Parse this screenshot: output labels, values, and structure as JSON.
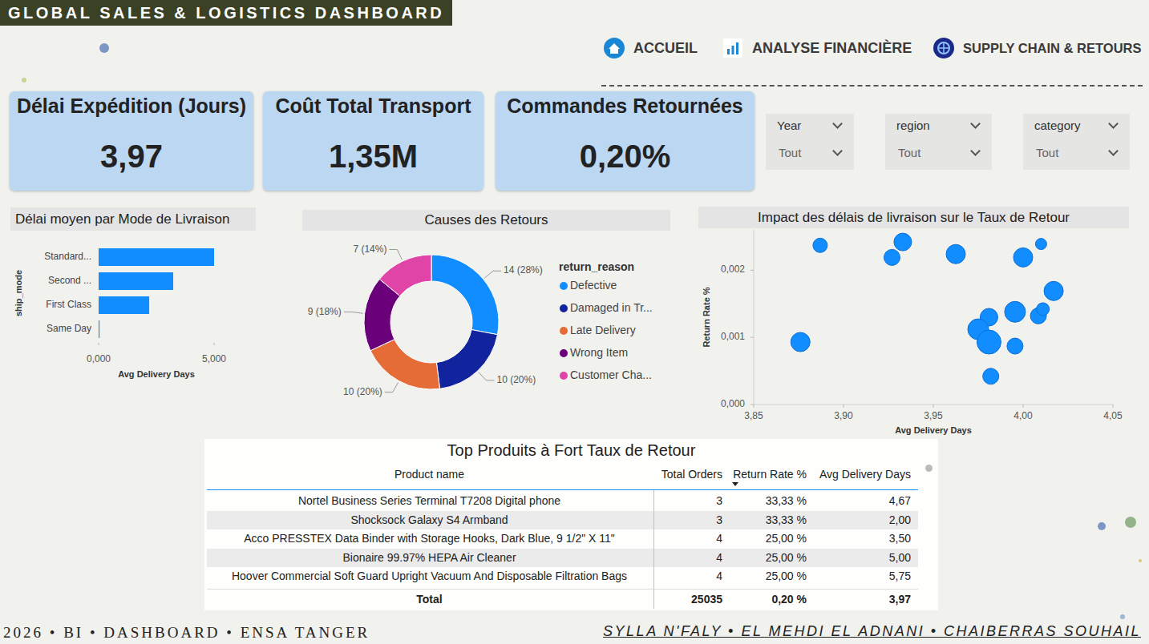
{
  "header": {
    "title": "GLOBAL SALES & LOGISTICS DASHBOARD"
  },
  "nav": [
    {
      "label": "ACCUEIL"
    },
    {
      "label": "ANALYSE FINANCIÈRE"
    },
    {
      "label": "SUPPLY CHAIN & RETOURS"
    }
  ],
  "kpis": [
    {
      "label": "Délai Expédition (Jours)",
      "value": "3,97"
    },
    {
      "label": "Coût Total Transport",
      "value": "1,35M"
    },
    {
      "label": "Commandes Retournées",
      "value": "0,20%"
    }
  ],
  "filters": [
    {
      "label": "Year",
      "value": "Tout"
    },
    {
      "label": "region",
      "value": "Tout"
    },
    {
      "label": "category",
      "value": "Tout"
    }
  ],
  "chart_data": [
    {
      "type": "bar",
      "orientation": "horizontal",
      "title": "Délai moyen par Mode de Livraison",
      "x_label": "Avg Delivery Days",
      "y_label": "ship_mode",
      "categories": [
        "Standard...",
        "Second ...",
        "First Class",
        "Same Day"
      ],
      "values": [
        5.0,
        3.23,
        2.19,
        0.04
      ],
      "color": "#118dff",
      "xlim": [
        0,
        5
      ],
      "xticks": [
        {
          "value": 0,
          "label": "0,000"
        },
        {
          "value": 5,
          "label": "5,000"
        }
      ],
      "grid": false
    },
    {
      "type": "donut",
      "title": "Causes des Retours",
      "legend_title": "return_reason",
      "categories": [
        "Defective",
        "Damaged in Tr...",
        "Late Delivery",
        "Wrong Item",
        "Customer Cha..."
      ],
      "values": [
        14,
        10,
        10,
        9,
        7
      ],
      "value_labels": [
        "14 (28%)",
        "10 (20%)",
        "10 (20%)",
        "9 (18%)",
        "7 (14%)"
      ],
      "colors": [
        "#118dff",
        "#12239e",
        "#e66c37",
        "#6b007b",
        "#e044a7"
      ],
      "legend": "right",
      "data_labels": true
    },
    {
      "type": "scatter",
      "title": "Impact des délais de livraison sur le Taux de Retour",
      "x_label": "Avg Delivery Days",
      "y_label": "Return Rate %",
      "x": [
        3.887,
        3.933,
        3.927,
        3.9625,
        4.0,
        4.01,
        4.017,
        3.876,
        3.981,
        3.975,
        3.981,
        3.9955,
        4.0085,
        4.011,
        3.9955,
        3.982
      ],
      "values": [
        0.00237,
        0.00242,
        0.00219,
        0.00224,
        0.00219,
        0.00239,
        0.00169,
        0.00093,
        0.0013,
        0.00112,
        0.00093,
        0.00138,
        0.00132,
        0.00142,
        0.00087,
        0.00042
      ],
      "sizes": [
        81,
        121,
        100,
        144,
        144,
        49,
        144,
        144,
        121,
        169,
        225,
        169,
        100,
        64,
        100,
        100
      ],
      "color": "#118dff",
      "xlim": [
        3.85,
        4.05
      ],
      "ylim": [
        0,
        0.0026
      ],
      "xticks": [
        {
          "value": 3.85,
          "label": "3,85"
        },
        {
          "value": 3.9,
          "label": "3,90"
        },
        {
          "value": 3.95,
          "label": "3,95"
        },
        {
          "value": 4.0,
          "label": "4,00"
        },
        {
          "value": 4.05,
          "label": "4,05"
        }
      ],
      "yticks": [
        {
          "value": 0,
          "label": "0,000"
        },
        {
          "value": 0.001,
          "label": "0,001"
        },
        {
          "value": 0.002,
          "label": "0,002"
        }
      ],
      "grid": false
    }
  ],
  "table": {
    "title": "Top Produits à Fort Taux de Retour",
    "columns": [
      "Product name",
      "Total Orders",
      "Return Rate %",
      "Avg Delivery Days"
    ],
    "rows": [
      [
        "Nortel Business Series Terminal T7208 Digital phone",
        "3",
        "33,33 %",
        "4,67"
      ],
      [
        "Shocksock Galaxy S4 Armband",
        "3",
        "33,33 %",
        "2,00"
      ],
      [
        "Acco PRESSTEX Data Binder with Storage Hooks, Dark Blue, 9 1/2\" X 11\"",
        "4",
        "25,00 %",
        "3,50"
      ],
      [
        "Bionaire 99.97% HEPA Air Cleaner",
        "4",
        "25,00 %",
        "5,00"
      ],
      [
        "Hoover Commercial Soft Guard Upright Vacuum And Disposable Filtration Bags",
        "4",
        "25,00 %",
        "5,75"
      ]
    ],
    "total": [
      "Total",
      "25035",
      "0,20 %",
      "3,97"
    ]
  },
  "footer": {
    "left": "2026 • BI • DASHBOARD • ENSA TANGER",
    "right": "SYLLA N'FALY • EL MEHDI EL ADNANI • CHAIBERRAS SOUHAIL"
  }
}
